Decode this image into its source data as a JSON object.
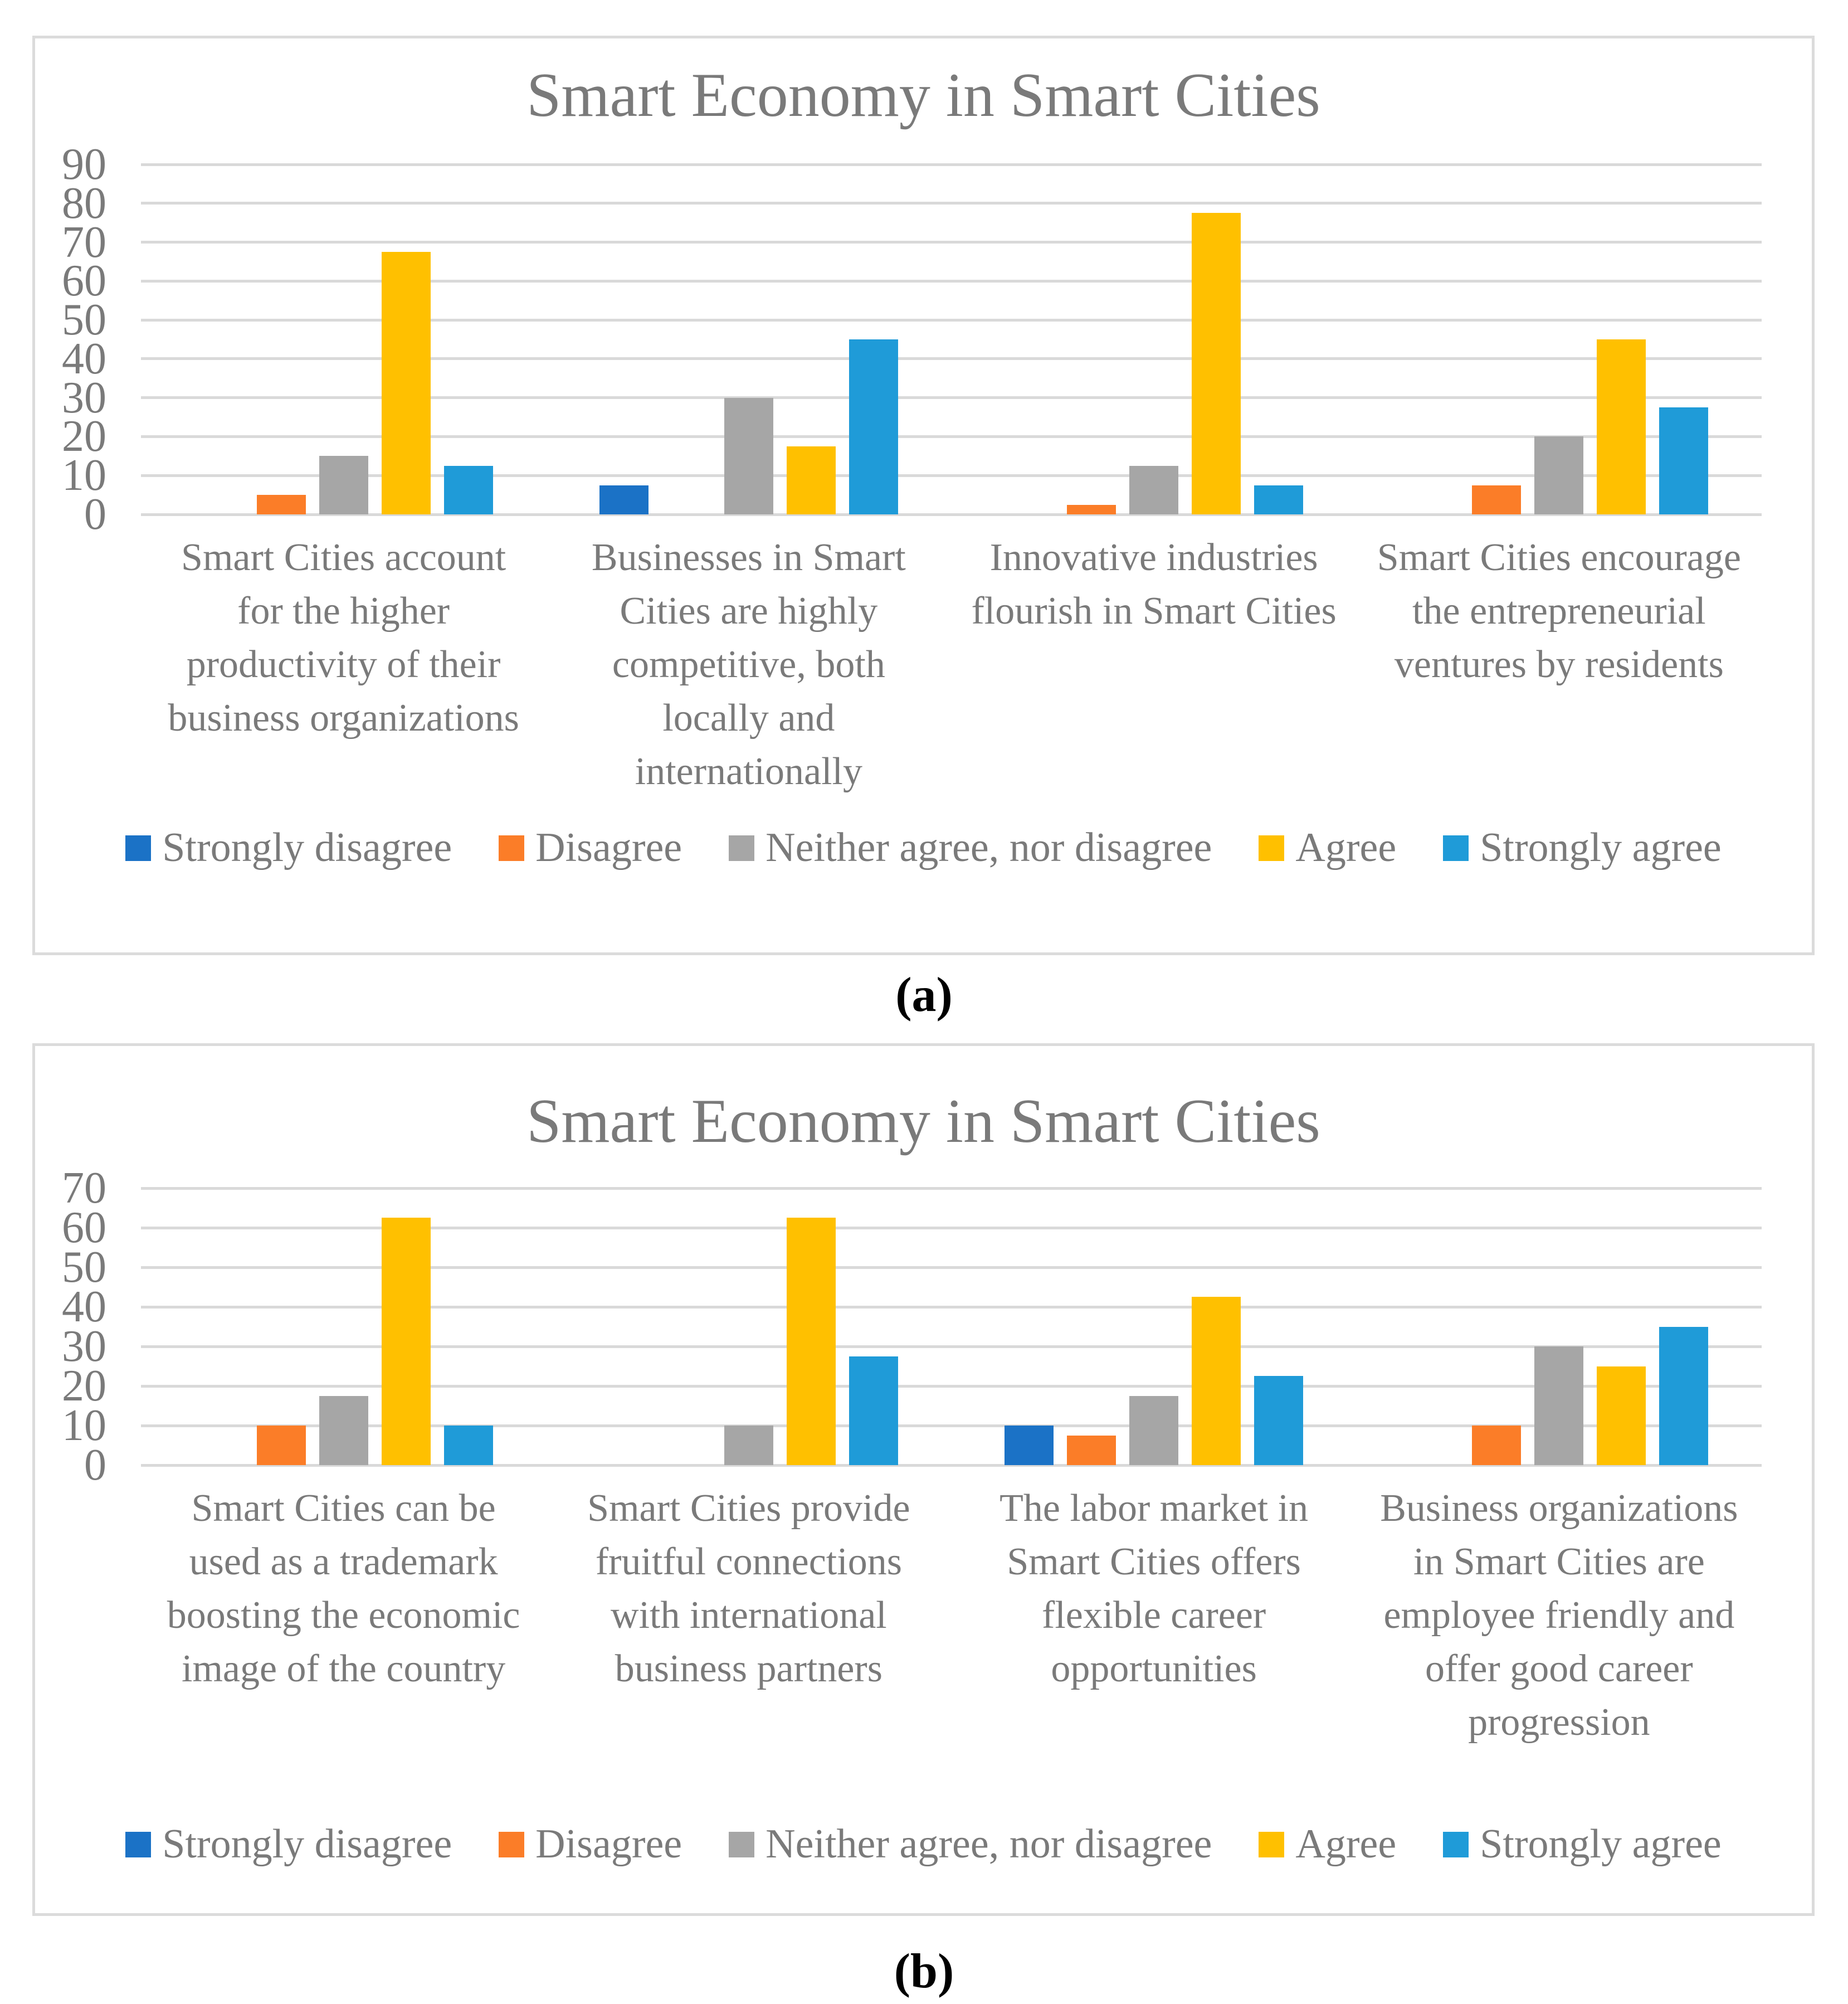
{
  "captions": {
    "a": "(a)",
    "b": "(b)"
  },
  "chart_data": [
    {
      "id": "a",
      "type": "bar",
      "title": "Smart Economy in Smart Cities",
      "xlabel": "",
      "ylabel": "",
      "ylim": [
        0,
        90
      ],
      "ytick_step": 10,
      "grid": true,
      "legend_position": "bottom",
      "text_color": "#7A7A7A",
      "gridline_color": "#D9D9D9",
      "categories": [
        "Smart Cities account for the higher productivity of their business organizations",
        "Businesses in Smart Cities are highly competitive, both locally and internationally",
        "Innovative industries flourish in Smart Cities",
        "Smart Cities encourage the entrepreneurial ventures by residents"
      ],
      "series": [
        {
          "name": "Strongly disagree",
          "color": "#1B72C6",
          "values": [
            0,
            7.5,
            0,
            0
          ]
        },
        {
          "name": "Disagree",
          "color": "#FB7D28",
          "values": [
            5,
            0,
            2.5,
            7.5
          ]
        },
        {
          "name": "Neither agree, nor disagree",
          "color": "#A6A6A6",
          "values": [
            15,
            30,
            12.5,
            20
          ]
        },
        {
          "name": "Agree",
          "color": "#FFC000",
          "values": [
            67.5,
            17.5,
            77.5,
            45
          ]
        },
        {
          "name": "Strongly agree",
          "color": "#1F9BD8",
          "values": [
            12.5,
            45,
            7.5,
            27.5
          ]
        }
      ]
    },
    {
      "id": "b",
      "type": "bar",
      "title": "Smart Economy in Smart Cities",
      "xlabel": "",
      "ylabel": "",
      "ylim": [
        0,
        70
      ],
      "ytick_step": 10,
      "grid": true,
      "legend_position": "bottom",
      "text_color": "#7A7A7A",
      "gridline_color": "#D9D9D9",
      "categories": [
        "Smart Cities can be used as a trademark boosting the economic image of the country",
        "Smart Cities provide fruitful connections with international business partners",
        "The labor market in Smart Cities offers flexible career opportunities",
        "Business organizations in Smart Cities are employee friendly and offer good career progression"
      ],
      "series": [
        {
          "name": "Strongly disagree",
          "color": "#1B72C6",
          "values": [
            0,
            0,
            10,
            0
          ]
        },
        {
          "name": "Disagree",
          "color": "#FB7D28",
          "values": [
            10,
            0,
            7.5,
            10
          ]
        },
        {
          "name": "Neither agree, nor disagree",
          "color": "#A6A6A6",
          "values": [
            17.5,
            10,
            17.5,
            30
          ]
        },
        {
          "name": "Agree",
          "color": "#FFC000",
          "values": [
            62.5,
            62.5,
            42.5,
            25
          ]
        },
        {
          "name": "Strongly agree",
          "color": "#1F9BD8",
          "values": [
            10,
            27.5,
            22.5,
            35
          ]
        }
      ]
    }
  ]
}
